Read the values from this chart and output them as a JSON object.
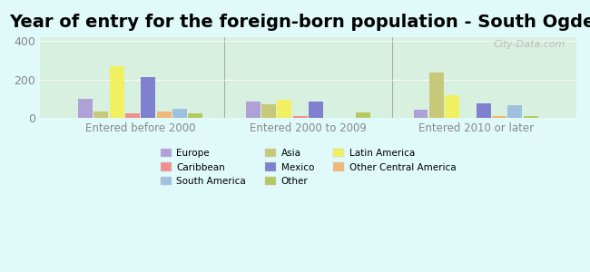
{
  "title": "Year of entry for the foreign-born population - South Ogden",
  "groups": [
    "Entered before 2000",
    "Entered 2000 to 2009",
    "Entered 2010 or later"
  ],
  "categories": [
    "Europe",
    "Asia",
    "Latin America",
    "Caribbean",
    "Mexico",
    "Other Central America",
    "South America",
    "Other"
  ],
  "values": [
    [
      100,
      30,
      270,
      20,
      210,
      30,
      45,
      20
    ],
    [
      85,
      70,
      95,
      10,
      85,
      0,
      0,
      25
    ],
    [
      40,
      235,
      115,
      0,
      75,
      10,
      65,
      10
    ]
  ],
  "colors": [
    "#b0a0d8",
    "#c8c87a",
    "#f0f060",
    "#f09090",
    "#8080d0",
    "#f0b878",
    "#a0c0e0",
    "#b8c860"
  ],
  "background_color": "#e0fafa",
  "plot_bg_top": "#d8f0e0",
  "plot_bg_bottom": "#c0e8f8",
  "ylim": [
    0,
    420
  ],
  "yticks": [
    0,
    200,
    400
  ],
  "title_fontsize": 14,
  "tick_color": "#888888",
  "label_color": "#888888",
  "watermark": "City-Data.com"
}
